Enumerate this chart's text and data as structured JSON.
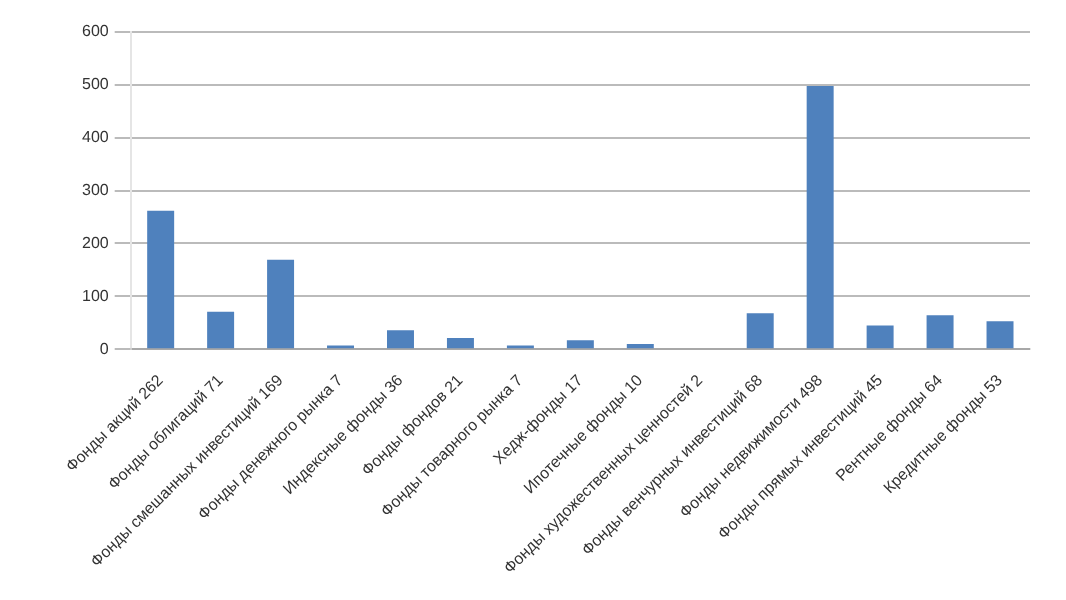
{
  "chart_data": {
    "type": "bar",
    "categories": [
      "Фонды акций 262",
      "Фонды облигаций 71",
      "Фонды смешанных инвестиций 169",
      "Фонды денежного рынка 7",
      "Индексные фонды 36",
      "Фонды фондов 21",
      "Фонды товарного рынка 7",
      "Хедж-фонды 17",
      "Ипотечные фонды 10",
      "Фонды художественных ценностей 2",
      "Фонды венчурных инвестиций 68",
      "Фонды недвижимости 498",
      "Фонды прямых инвестиций 45",
      "Рентные фонды 64",
      "Кредитные фонды 53"
    ],
    "values": [
      262,
      71,
      169,
      7,
      36,
      21,
      7,
      17,
      10,
      2,
      68,
      498,
      45,
      64,
      53
    ],
    "color": "#4f81bd",
    "ylim": [
      0,
      600
    ],
    "yticks": [
      0,
      100,
      200,
      300,
      400,
      500,
      600
    ],
    "grid": "y"
  }
}
